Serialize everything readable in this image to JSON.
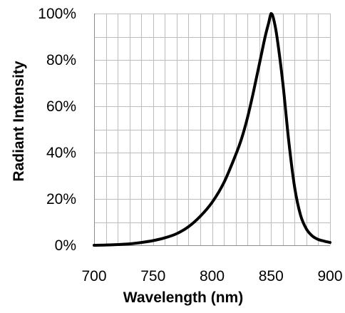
{
  "chart_data": {
    "type": "line",
    "title": "",
    "xlabel": "Wavelength (nm)",
    "ylabel": "Radiant Intensity",
    "xlim": [
      700,
      900
    ],
    "ylim": [
      0,
      100
    ],
    "x_ticks": [
      700,
      750,
      800,
      850,
      900
    ],
    "x_tick_labels": [
      "700",
      "750",
      "800",
      "850",
      "900"
    ],
    "y_ticks": [
      0,
      20,
      40,
      60,
      80,
      100
    ],
    "y_tick_labels": [
      "0%",
      "20%",
      "40%",
      "60%",
      "80%",
      "100%"
    ],
    "grid": true,
    "legend": "none",
    "colors": {
      "series": "#000000",
      "grid": "#bdbdbd",
      "axis": "#8c8c8c",
      "background": "#ffffff"
    },
    "series": [
      {
        "x": [
          700,
          710,
          720,
          730,
          740,
          750,
          760,
          770,
          780,
          790,
          800,
          810,
          820,
          825,
          830,
          835,
          840,
          845,
          848,
          850,
          852,
          855,
          860,
          865,
          870,
          875,
          880,
          885,
          890,
          895,
          900
        ],
        "values": [
          0,
          0.1,
          0.3,
          0.6,
          1.2,
          2,
          3.2,
          5,
          8,
          12.5,
          18.5,
          27,
          39,
          46,
          55,
          66,
          78,
          90,
          96,
          100,
          98,
          90,
          70,
          45,
          25,
          13,
          7,
          4,
          2.5,
          1.8,
          1.2
        ]
      }
    ]
  }
}
